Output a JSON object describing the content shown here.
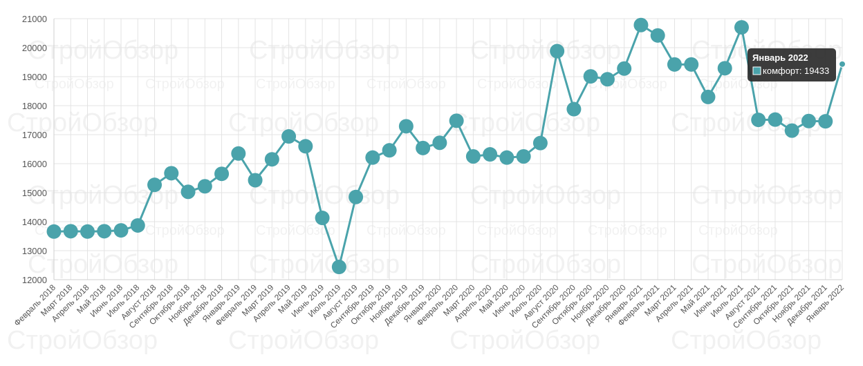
{
  "watermark": "СтройОбзор",
  "chart_data": {
    "type": "line",
    "title": "",
    "xlabel": "",
    "ylabel": "",
    "ylim": [
      12000,
      21000
    ],
    "yticks": [
      12000,
      13000,
      14000,
      15000,
      16000,
      17000,
      18000,
      19000,
      20000,
      21000
    ],
    "grid": true,
    "colors": {
      "line": "#4aa3ab",
      "point": "#4aa3ab",
      "grid": "#e3e3e3",
      "tooltip_bg": "#2b2b2b"
    },
    "categories": [
      "Февраль 2018",
      "Март 2018",
      "Апрель 2018",
      "Май 2018",
      "Июнь 2018",
      "Июль 2018",
      "Август 2018",
      "Сентябрь 2018",
      "Октябрь 2018",
      "Ноябрь 2018",
      "Декабрь 2018",
      "Январь 2019",
      "Февраль 2019",
      "Март 2019",
      "Апрель 2019",
      "Май 2019",
      "Июнь 2019",
      "Июль 2019",
      "Август 2019",
      "Сентябрь 2019",
      "Октябрь 2019",
      "Ноябрь 2019",
      "Декабрь 2019",
      "Январь 2020",
      "Февраль 2020",
      "Март 2020",
      "Апрель 2020",
      "Май 2020",
      "Июнь 2020",
      "Июль 2020",
      "Август 2020",
      "Сентябрь 2020",
      "Октябрь 2020",
      "Ноябрь 2020",
      "Декабрь 2020",
      "Январь 2021",
      "Февраль 2021",
      "Март 2021",
      "Апрель 2021",
      "Май 2021",
      "Июнь 2021",
      "Июль 2021",
      "Август 2021",
      "Сентябрь 2021",
      "Октябрь 2021",
      "Ноябрь 2021",
      "Декабрь 2021",
      "Январь 2022"
    ],
    "series": [
      {
        "name": "комфорт",
        "values": [
          13660,
          13670,
          13660,
          13670,
          13700,
          13870,
          15270,
          15670,
          15030,
          15220,
          15650,
          16350,
          15430,
          16150,
          16940,
          16600,
          14130,
          12440,
          14850,
          16210,
          16460,
          17290,
          16540,
          16720,
          17480,
          16250,
          16320,
          16210,
          16250,
          16710,
          19880,
          17880,
          19010,
          18910,
          19280,
          20780,
          20420,
          19420,
          19420,
          18300,
          19290,
          20700,
          17510,
          17520,
          17140,
          17470,
          17460,
          19433
        ]
      }
    ],
    "tooltip": {
      "title": "Январь 2022",
      "series": "комфорт",
      "value": "19433",
      "text": "комфорт: 19433"
    }
  }
}
